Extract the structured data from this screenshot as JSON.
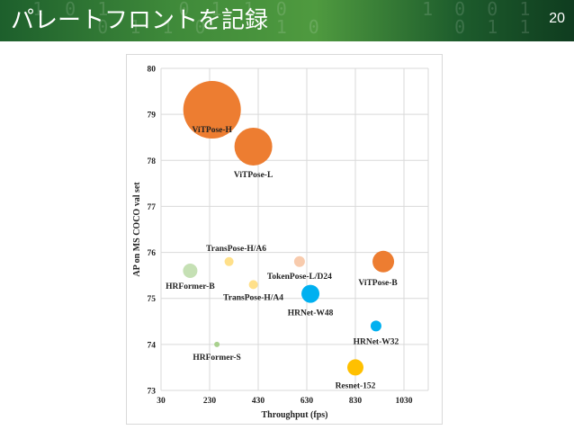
{
  "slide": {
    "title": "パレートフロントを記録",
    "page_number": "20",
    "header_color": "#3f8a3a"
  },
  "chart_data": {
    "type": "scatter",
    "subtype": "bubble",
    "title": "",
    "xlabel": "Throughput (fps)",
    "ylabel": "AP on MS COCO val set",
    "xlim": [
      30,
      1130
    ],
    "ylim": [
      73,
      80
    ],
    "xticks": [
      30,
      230,
      430,
      630,
      830,
      1030
    ],
    "yticks": [
      73,
      74,
      75,
      76,
      77,
      78,
      79,
      80
    ],
    "grid": true,
    "points": [
      {
        "label": "ViTPose-H",
        "x": 240,
        "y": 79.1,
        "size": 32,
        "color": "#ed7d31"
      },
      {
        "label": "ViTPose-L",
        "x": 410,
        "y": 78.3,
        "size": 21,
        "color": "#ed7d31"
      },
      {
        "label": "ViTPose-B",
        "x": 945,
        "y": 75.8,
        "size": 12,
        "color": "#ed7d31"
      },
      {
        "label": "TransPose-H/A6",
        "x": 310,
        "y": 75.8,
        "size": 5,
        "color": "#ffe08a"
      },
      {
        "label": "TransPose-H/A4",
        "x": 410,
        "y": 75.3,
        "size": 5,
        "color": "#ffe08a"
      },
      {
        "label": "TokenPose-L/D24",
        "x": 600,
        "y": 75.8,
        "size": 6,
        "color": "#f8cbad"
      },
      {
        "label": "HRFormer-B",
        "x": 150,
        "y": 75.6,
        "size": 8,
        "color": "#c5e0b4"
      },
      {
        "label": "HRFormer-S",
        "x": 260,
        "y": 74.0,
        "size": 3,
        "color": "#a9d18e"
      },
      {
        "label": "HRNet-W48",
        "x": 645,
        "y": 75.1,
        "size": 10,
        "color": "#00b0f0"
      },
      {
        "label": "HRNet-W32",
        "x": 915,
        "y": 74.4,
        "size": 6,
        "color": "#00b0f0"
      },
      {
        "label": "Resnet-152",
        "x": 830,
        "y": 73.5,
        "size": 9,
        "color": "#ffc000"
      }
    ]
  }
}
